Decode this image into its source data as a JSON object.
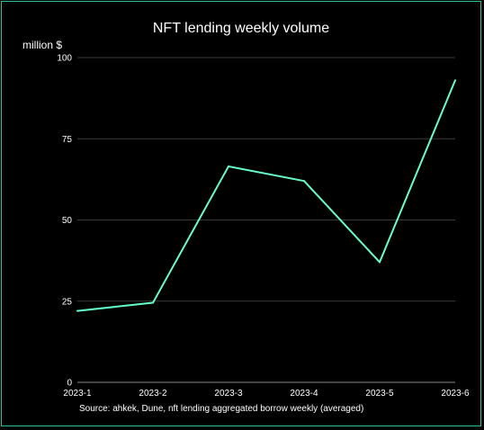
{
  "chart_data": {
    "type": "line",
    "title": "NFT lending weekly volume",
    "ylabel": "million $",
    "xlabel": "",
    "categories": [
      "2023-1",
      "2023-2",
      "2023-3",
      "2023-4",
      "2023-5",
      "2023-6"
    ],
    "series": [
      {
        "values": [
          22,
          24.5,
          66.5,
          62,
          37,
          93
        ],
        "color": "#66ffcc"
      }
    ],
    "ylim": [
      0,
      100
    ],
    "yticks": [
      0,
      25,
      50,
      75,
      100
    ],
    "grid": true,
    "legend": "none",
    "source": "Source:  ahkek, Dune, nft lending aggregated borrow weekly (averaged)"
  },
  "frame_color": "#2fbf9f"
}
